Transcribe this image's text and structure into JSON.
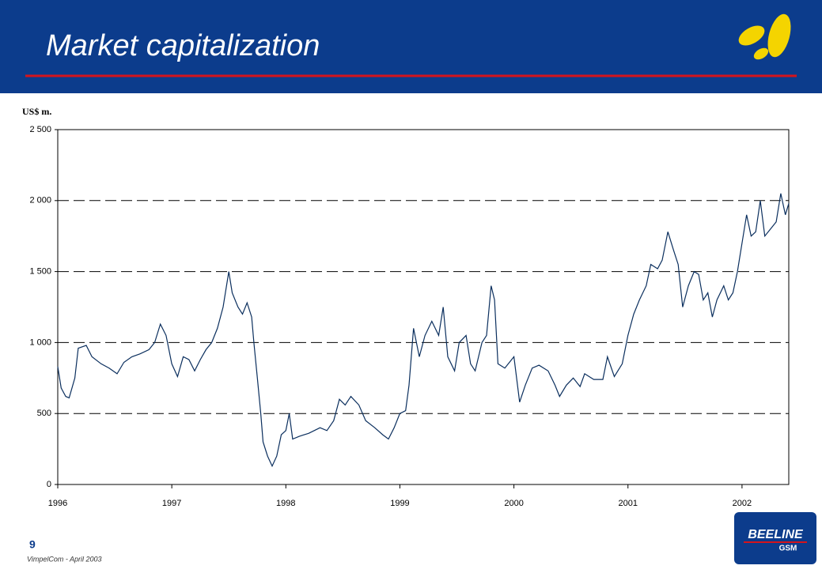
{
  "header": {
    "title": "Market capitalization"
  },
  "footer": {
    "page": "9",
    "note": "VimpelCom - April 2003"
  },
  "logo": {
    "brand": "BEELINE",
    "sub": "GSM"
  },
  "chart_data": {
    "type": "line",
    "y_axis_label": "US$ m.",
    "xlim": [
      1996,
      2002.41
    ],
    "ylim": [
      0,
      2500
    ],
    "xticks": [
      1996,
      1997,
      1998,
      1999,
      2000,
      2001,
      2002
    ],
    "yticks": [
      0,
      500,
      {
        "value": 1000,
        "label": "1 000"
      },
      {
        "value": 1500,
        "label": "1 500"
      },
      {
        "value": 2000,
        "label": "2 000"
      },
      {
        "value": 2500,
        "label": "2 500"
      }
    ],
    "grid": true,
    "x": [
      1996.0,
      1996.03,
      1996.07,
      1996.1,
      1996.15,
      1996.18,
      1996.25,
      1996.3,
      1996.38,
      1996.45,
      1996.52,
      1996.58,
      1996.65,
      1996.72,
      1996.8,
      1996.85,
      1996.9,
      1996.95,
      1997.0,
      1997.05,
      1997.1,
      1997.15,
      1997.2,
      1997.25,
      1997.3,
      1997.35,
      1997.4,
      1997.45,
      1997.5,
      1997.53,
      1997.58,
      1997.62,
      1997.66,
      1997.7,
      1997.72,
      1997.75,
      1997.78,
      1997.8,
      1997.84,
      1997.88,
      1997.92,
      1997.96,
      1998.0,
      1998.03,
      1998.06,
      1998.12,
      1998.2,
      1998.3,
      1998.36,
      1998.42,
      1998.47,
      1998.52,
      1998.57,
      1998.64,
      1998.7,
      1998.78,
      1998.85,
      1998.9,
      1998.95,
      1999.0,
      1999.05,
      1999.08,
      1999.12,
      1999.17,
      1999.22,
      1999.28,
      1999.34,
      1999.38,
      1999.42,
      1999.48,
      1999.52,
      1999.58,
      1999.62,
      1999.66,
      1999.72,
      1999.76,
      1999.8,
      1999.83,
      1999.86,
      1999.92,
      2000.0,
      2000.05,
      2000.1,
      2000.16,
      2000.22,
      2000.3,
      2000.36,
      2000.4,
      2000.46,
      2000.52,
      2000.58,
      2000.62,
      2000.7,
      2000.78,
      2000.82,
      2000.88,
      2000.95,
      2001.0,
      2001.05,
      2001.1,
      2001.16,
      2001.2,
      2001.26,
      2001.3,
      2001.35,
      2001.4,
      2001.44,
      2001.48,
      2001.53,
      2001.58,
      2001.62,
      2001.66,
      2001.7,
      2001.74,
      2001.78,
      2001.84,
      2001.88,
      2001.92,
      2001.96,
      2002.0,
      2002.04,
      2002.08,
      2002.12,
      2002.16,
      2002.2,
      2002.25,
      2002.3,
      2002.34,
      2002.38,
      2002.41
    ],
    "series": [
      {
        "color": "#0b2f5e",
        "values": [
          830,
          680,
          620,
          610,
          750,
          960,
          980,
          900,
          850,
          820,
          780,
          860,
          900,
          920,
          950,
          1000,
          1130,
          1050,
          850,
          760,
          900,
          880,
          800,
          880,
          950,
          1000,
          1100,
          1250,
          1500,
          1350,
          1250,
          1200,
          1280,
          1180,
          1000,
          750,
          500,
          300,
          200,
          130,
          200,
          350,
          380,
          500,
          320,
          340,
          360,
          400,
          380,
          450,
          600,
          560,
          620,
          560,
          450,
          400,
          350,
          320,
          400,
          500,
          520,
          700,
          1100,
          900,
          1050,
          1150,
          1050,
          1250,
          900,
          800,
          1000,
          1050,
          850,
          800,
          1000,
          1050,
          1400,
          1300,
          850,
          820,
          900,
          580,
          700,
          820,
          840,
          800,
          700,
          620,
          700,
          750,
          690,
          780,
          740,
          740,
          900,
          760,
          850,
          1050,
          1200,
          1300,
          1400,
          1550,
          1520,
          1580,
          1780,
          1650,
          1550,
          1250,
          1400,
          1500,
          1480,
          1300,
          1350,
          1180,
          1300,
          1400,
          1300,
          1350,
          1500,
          1700,
          1900,
          1750,
          1780,
          2000,
          1750,
          1800,
          1850,
          2050,
          1900,
          1980
        ]
      }
    ]
  }
}
